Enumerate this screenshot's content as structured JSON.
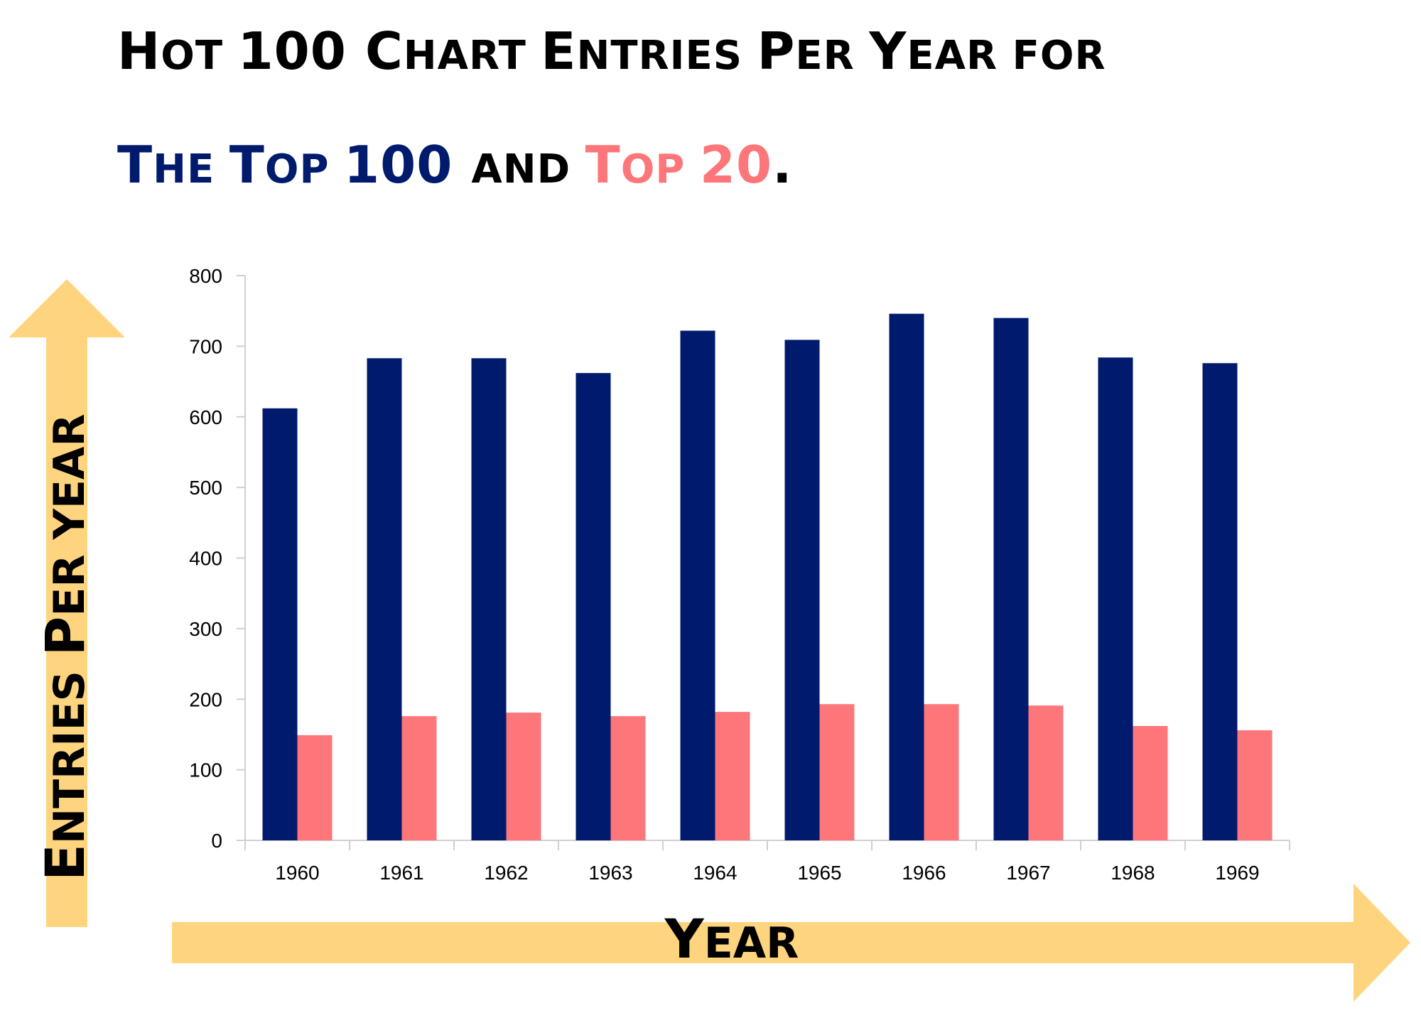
{
  "title": {
    "line1": [
      {
        "t": "H",
        "c": "big"
      },
      {
        "t": "OT ",
        "c": "sm"
      },
      {
        "t": "100 ",
        "c": "big"
      },
      {
        "t": "C",
        "c": "big"
      },
      {
        "t": "HART ",
        "c": "sm"
      },
      {
        "t": "E",
        "c": "big"
      },
      {
        "t": "NTRIES ",
        "c": "sm"
      },
      {
        "t": "P",
        "c": "big"
      },
      {
        "t": "ER ",
        "c": "sm"
      },
      {
        "t": "Y",
        "c": "big"
      },
      {
        "t": "EAR FOR",
        "c": "sm"
      }
    ],
    "line2": [
      {
        "t": "T",
        "c": "big",
        "color": "navy"
      },
      {
        "t": "HE ",
        "c": "sm",
        "color": "navy"
      },
      {
        "t": "T",
        "c": "big",
        "color": "navy"
      },
      {
        "t": "OP ",
        "c": "sm",
        "color": "navy"
      },
      {
        "t": "100 ",
        "c": "big",
        "color": "navy"
      },
      {
        "t": "AND ",
        "c": "sm"
      },
      {
        "t": "T",
        "c": "big",
        "color": "salmon"
      },
      {
        "t": "OP ",
        "c": "sm",
        "color": "salmon"
      },
      {
        "t": "20",
        "c": "big",
        "color": "salmon"
      },
      {
        "t": ".",
        "c": "big"
      }
    ]
  },
  "chart_data": {
    "type": "bar",
    "categories": [
      "1960",
      "1961",
      "1962",
      "1963",
      "1964",
      "1965",
      "1966",
      "1967",
      "1968",
      "1969"
    ],
    "series": [
      {
        "values": [
          612,
          683,
          683,
          662,
          722,
          709,
          746,
          740,
          684,
          676
        ],
        "color": "#001a6e"
      },
      {
        "values": [
          149,
          176,
          181,
          176,
          182,
          193,
          193,
          191,
          162,
          156
        ],
        "color": "#fd7679"
      }
    ],
    "ylim": [
      0,
      800
    ],
    "yticks": [
      0,
      100,
      200,
      300,
      400,
      500,
      600,
      700,
      800
    ],
    "xlabel": "Year",
    "ylabel": "Entries Per year",
    "grid": false,
    "legend": "none"
  },
  "axis_titles": {
    "y": [
      {
        "t": "E",
        "c": "big"
      },
      {
        "t": "NTRIES ",
        "c": "sm"
      },
      {
        "t": "P",
        "c": "big"
      },
      {
        "t": "ER YEAR",
        "c": "sm"
      }
    ],
    "x": [
      {
        "t": "Y",
        "c": "big"
      },
      {
        "t": "EAR",
        "c": "sm"
      }
    ]
  },
  "colors": {
    "navy": "#001a6e",
    "salmon": "#fd7679",
    "arrow": "#ffd47f"
  }
}
